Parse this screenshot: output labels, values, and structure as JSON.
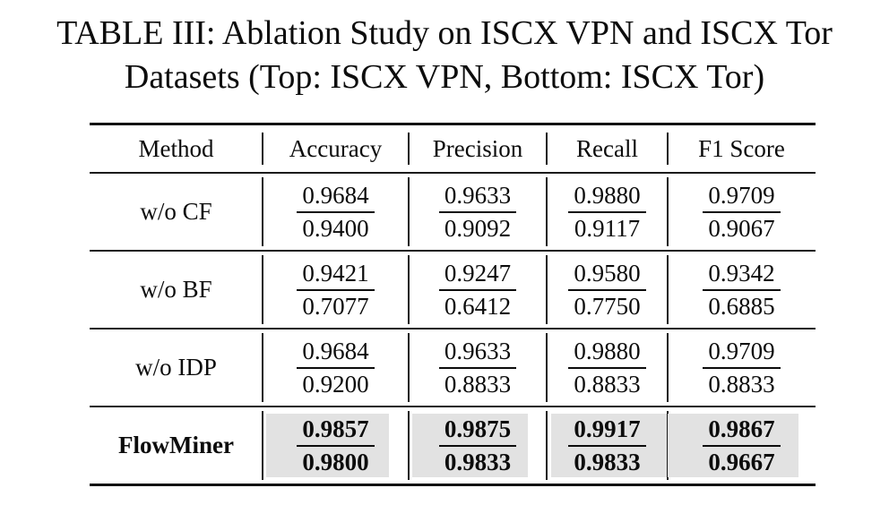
{
  "caption": {
    "line1": "TABLE III: Ablation Study on ISCX VPN and ISCX Tor",
    "line2": "Datasets (Top: ISCX VPN, Bottom: ISCX Tor)"
  },
  "table": {
    "columns": [
      "Method",
      "Accuracy",
      "Precision",
      "Recall",
      "F1 Score"
    ],
    "rows": [
      {
        "method": "w/o CF",
        "highlight": false,
        "metrics": [
          {
            "top": "0.9684",
            "bottom": "0.9400"
          },
          {
            "top": "0.9633",
            "bottom": "0.9092"
          },
          {
            "top": "0.9880",
            "bottom": "0.9117"
          },
          {
            "top": "0.9709",
            "bottom": "0.9067"
          }
        ]
      },
      {
        "method": "w/o BF",
        "highlight": false,
        "metrics": [
          {
            "top": "0.9421",
            "bottom": "0.7077"
          },
          {
            "top": "0.9247",
            "bottom": "0.6412"
          },
          {
            "top": "0.9580",
            "bottom": "0.7750"
          },
          {
            "top": "0.9342",
            "bottom": "0.6885"
          }
        ]
      },
      {
        "method": "w/o IDP",
        "highlight": false,
        "metrics": [
          {
            "top": "0.9684",
            "bottom": "0.9200"
          },
          {
            "top": "0.9633",
            "bottom": "0.8833"
          },
          {
            "top": "0.9880",
            "bottom": "0.8833"
          },
          {
            "top": "0.9709",
            "bottom": "0.8833"
          }
        ]
      },
      {
        "method": "FlowMiner",
        "highlight": true,
        "metrics": [
          {
            "top": "0.9857",
            "bottom": "0.9800"
          },
          {
            "top": "0.9875",
            "bottom": "0.9833"
          },
          {
            "top": "0.9917",
            "bottom": "0.9833"
          },
          {
            "top": "0.9867",
            "bottom": "0.9667"
          }
        ]
      }
    ]
  },
  "colors": {
    "highlight": "#e2e2e2",
    "rule": "#1b1b1b",
    "text": "#0c0c0c"
  }
}
